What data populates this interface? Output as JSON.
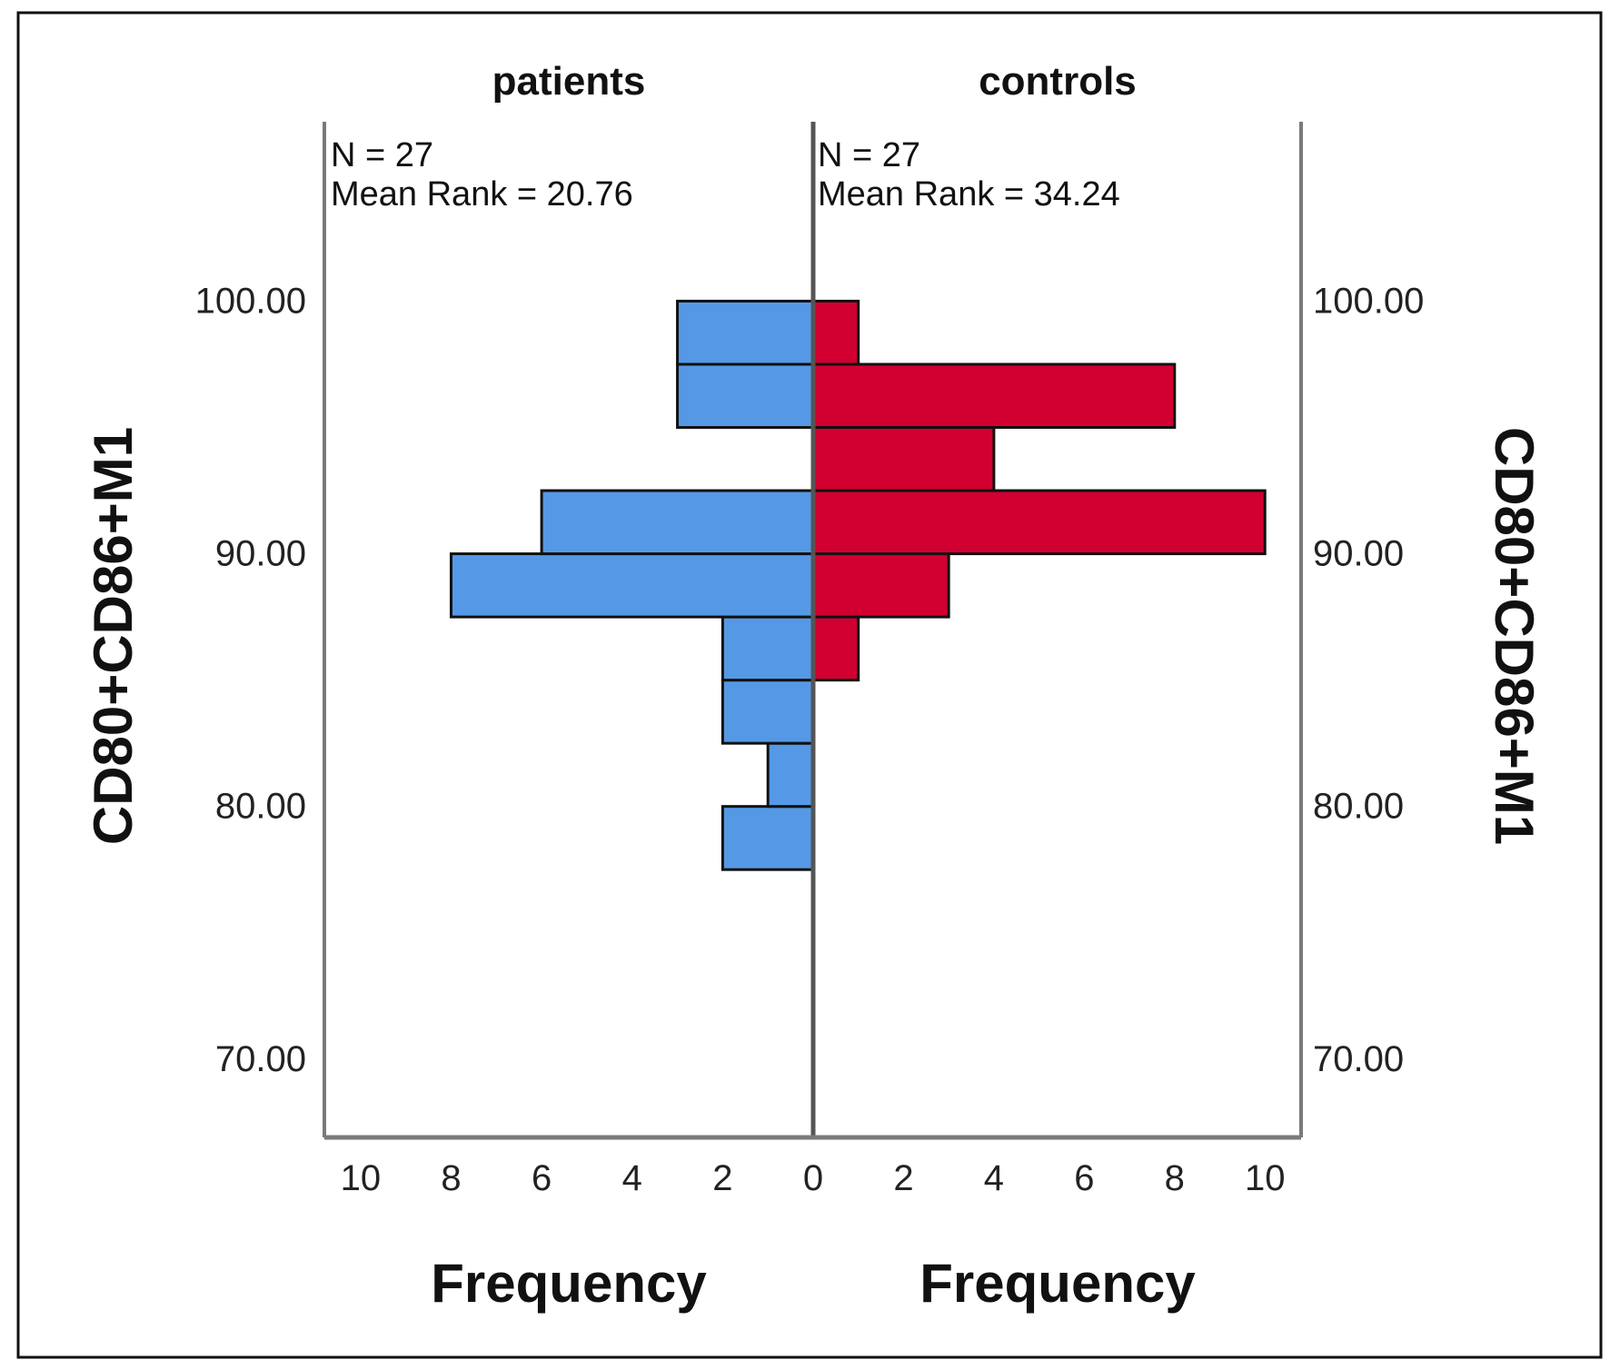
{
  "chart_data": {
    "type": "bar",
    "orientation": "population-pyramid",
    "categories": [
      "78.75",
      "81.25",
      "83.75",
      "86.25",
      "88.75",
      "91.25",
      "93.75",
      "96.25",
      "98.75"
    ],
    "series": [
      {
        "name": "patients",
        "color": "#5599e6",
        "values": [
          2,
          1,
          2,
          2,
          8,
          6,
          0,
          3,
          3
        ],
        "n_label": "N = 27",
        "mean_rank_label": "Mean Rank = 20.76"
      },
      {
        "name": "controls",
        "color": "#d20030",
        "values": [
          0,
          0,
          0,
          1,
          3,
          10,
          4,
          8,
          1
        ],
        "n_label": "N = 27",
        "mean_rank_label": "Mean Rank = 34.24"
      }
    ],
    "bin_width": 2.5,
    "ylim": [
      66.9,
      107.1
    ],
    "yticks": [
      "70.00",
      "80.00",
      "90.00",
      "100.00"
    ],
    "xlim": [
      0,
      10.8
    ],
    "xticks_patients": [
      "10",
      "8",
      "6",
      "4",
      "2",
      "0"
    ],
    "xticks_controls": [
      "0",
      "2",
      "4",
      "6",
      "8",
      "10"
    ],
    "ylabel_left": "CD80+CD86+M1",
    "ylabel_right": "CD80+CD86+M1",
    "xlabel_patients": "Frequency",
    "xlabel_controls": "Frequency",
    "grid": false
  }
}
